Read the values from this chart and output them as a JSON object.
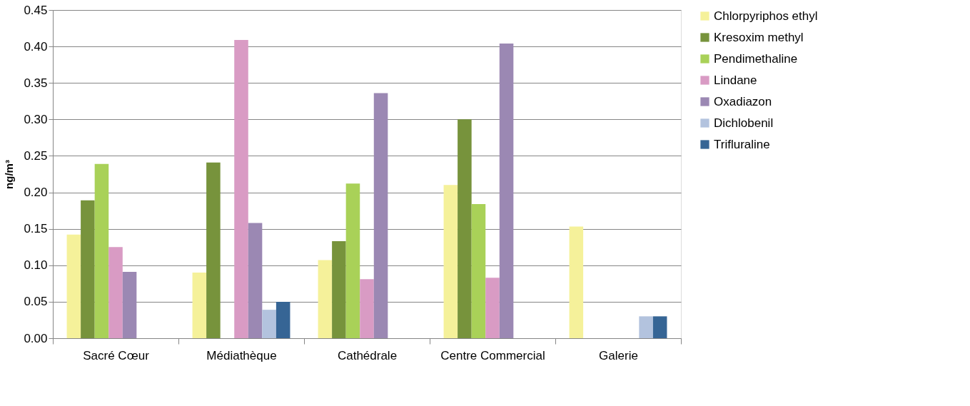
{
  "chart_data": {
    "type": "bar",
    "ylabel": "ng/m³",
    "categories": [
      "Sacré Cœur",
      "Médiathèque",
      "Cathédrale",
      "Centre Commercial",
      "Galerie"
    ],
    "series": [
      {
        "name": "Chlorpyriphos ethyl",
        "color": "#f5f19a",
        "values": [
          0.142,
          0.09,
          0.107,
          0.21,
          0.153
        ]
      },
      {
        "name": "Kresoxim methyl",
        "color": "#77933c",
        "values": [
          0.189,
          0.241,
          0.133,
          0.3,
          null
        ]
      },
      {
        "name": "Pendimethaline",
        "color": "#a9d158",
        "values": [
          0.239,
          null,
          0.212,
          0.184,
          null
        ]
      },
      {
        "name": "Lindane",
        "color": "#d99bc4",
        "values": [
          0.125,
          0.409,
          0.081,
          0.083,
          null
        ]
      },
      {
        "name": "Oxadiazon",
        "color": "#9b88b3",
        "values": [
          0.091,
          0.158,
          0.336,
          0.404,
          null
        ]
      },
      {
        "name": "Dichlobenil",
        "color": "#b3c3de",
        "values": [
          null,
          0.039,
          null,
          null,
          0.03
        ]
      },
      {
        "name": "Trifluraline",
        "color": "#366595",
        "values": [
          null,
          0.05,
          null,
          null,
          0.03
        ]
      }
    ],
    "ylim": [
      0,
      0.45
    ],
    "yticks": [
      {
        "value": 0,
        "label": "0.00"
      },
      0.05,
      {
        "value": 0.1,
        "label": "0.10"
      },
      0.15,
      {
        "value": 0.2,
        "label": "0.20"
      },
      0.25,
      {
        "value": 0.3,
        "label": "0.30"
      },
      0.35,
      {
        "value": 0.4,
        "label": "0.40"
      },
      0.45
    ],
    "grid": "y",
    "legend": "top right"
  }
}
